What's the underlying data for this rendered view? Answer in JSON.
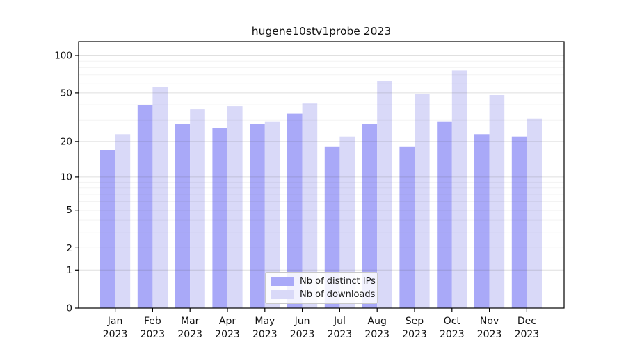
{
  "title": "hugene10stv1probe 2023",
  "chart_data": {
    "type": "bar",
    "title": "hugene10stv1probe 2023",
    "categories": [
      "Jan",
      "Feb",
      "Mar",
      "Apr",
      "May",
      "Jun",
      "Jul",
      "Aug",
      "Sep",
      "Oct",
      "Nov",
      "Dec"
    ],
    "year_label": "2023",
    "series": [
      {
        "name": "Nb of distinct IPs",
        "color": "#a9a9f8",
        "values": [
          17,
          40,
          28,
          26,
          28,
          34,
          18,
          28,
          18,
          29,
          23,
          22
        ]
      },
      {
        "name": "Nb of downloads",
        "color": "#d9d9f8",
        "values": [
          23,
          56,
          37,
          39,
          29,
          41,
          22,
          63,
          49,
          76,
          48,
          31
        ]
      }
    ],
    "xlabel": "",
    "ylabel": "",
    "yscale": "log1p",
    "ylim": [
      0,
      129
    ],
    "yticks": [
      0,
      1,
      2,
      5,
      10,
      20,
      50,
      100
    ],
    "minor_yticks": [
      3,
      4,
      6,
      7,
      8,
      9,
      30,
      40,
      60,
      70,
      80,
      90
    ],
    "grid": {
      "major_color": "rgba(80,80,80,0.18)",
      "minor_color": "rgba(80,80,80,0.07)",
      "top_line_color": "rgba(80,80,80,0.35)"
    },
    "legend_position": "bottom-center"
  }
}
